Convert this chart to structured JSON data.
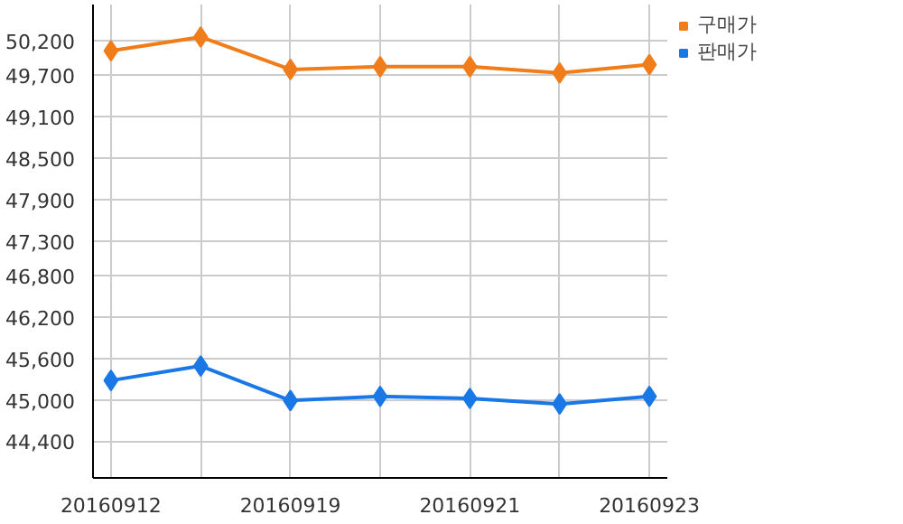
{
  "chart_data": {
    "type": "line",
    "categories": [
      "20160912",
      null,
      "20160919",
      null,
      "20160921",
      null,
      "20160923"
    ],
    "series": [
      {
        "name": "구매가",
        "color": "#f07d1a",
        "values": [
          50050,
          50250,
          49780,
          49820,
          49820,
          49730,
          49850
        ]
      },
      {
        "name": "판매가",
        "color": "#1a78e6",
        "values": [
          45280,
          45490,
          44990,
          45050,
          45020,
          44940,
          45050
        ]
      }
    ],
    "ylim": [
      43870,
      50720
    ],
    "yticks": [
      {
        "value": 44400,
        "label": "44,400"
      },
      {
        "value": 45000,
        "label": "45,000"
      },
      {
        "value": 45600,
        "label": "45,600"
      },
      {
        "value": 46200,
        "label": "46,200"
      },
      {
        "value": 46800,
        "label": "46,800"
      },
      {
        "value": 47300,
        "label": "47,300"
      },
      {
        "value": 47900,
        "label": "47,900"
      },
      {
        "value": 48500,
        "label": "48,500"
      },
      {
        "value": 49100,
        "label": "49,100"
      },
      {
        "value": 49700,
        "label": "49,700"
      },
      {
        "value": 50200,
        "label": "50,200"
      }
    ],
    "grid": true,
    "legend": "top right",
    "marker": "diamond",
    "line_style": "solid"
  }
}
